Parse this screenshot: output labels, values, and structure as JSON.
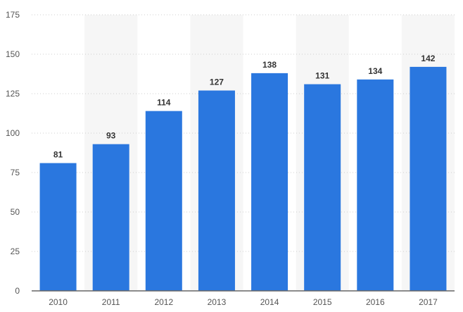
{
  "chart_data": {
    "type": "bar",
    "title": "",
    "xlabel": "",
    "ylabel": "",
    "categories": [
      "2010",
      "2011",
      "2012",
      "2013",
      "2014",
      "2015",
      "2016",
      "2017"
    ],
    "values": [
      81,
      93,
      114,
      127,
      138,
      131,
      134,
      142
    ],
    "data_labels": [
      "81",
      "93",
      "114",
      "127",
      "138",
      "131",
      "134",
      "142"
    ],
    "ylim": [
      0,
      175
    ],
    "yticks": [
      0,
      25,
      50,
      75,
      100,
      125,
      150,
      175
    ],
    "ytick_labels": [
      "0",
      "25",
      "50",
      "75",
      "100",
      "125",
      "150",
      "175"
    ],
    "grid": true,
    "alternating_bands": true,
    "legend": "none",
    "colors": {
      "bar": "#2a77df",
      "band": "#f6f6f6",
      "grid": "#cfcfcf",
      "axis": "#666666"
    }
  }
}
